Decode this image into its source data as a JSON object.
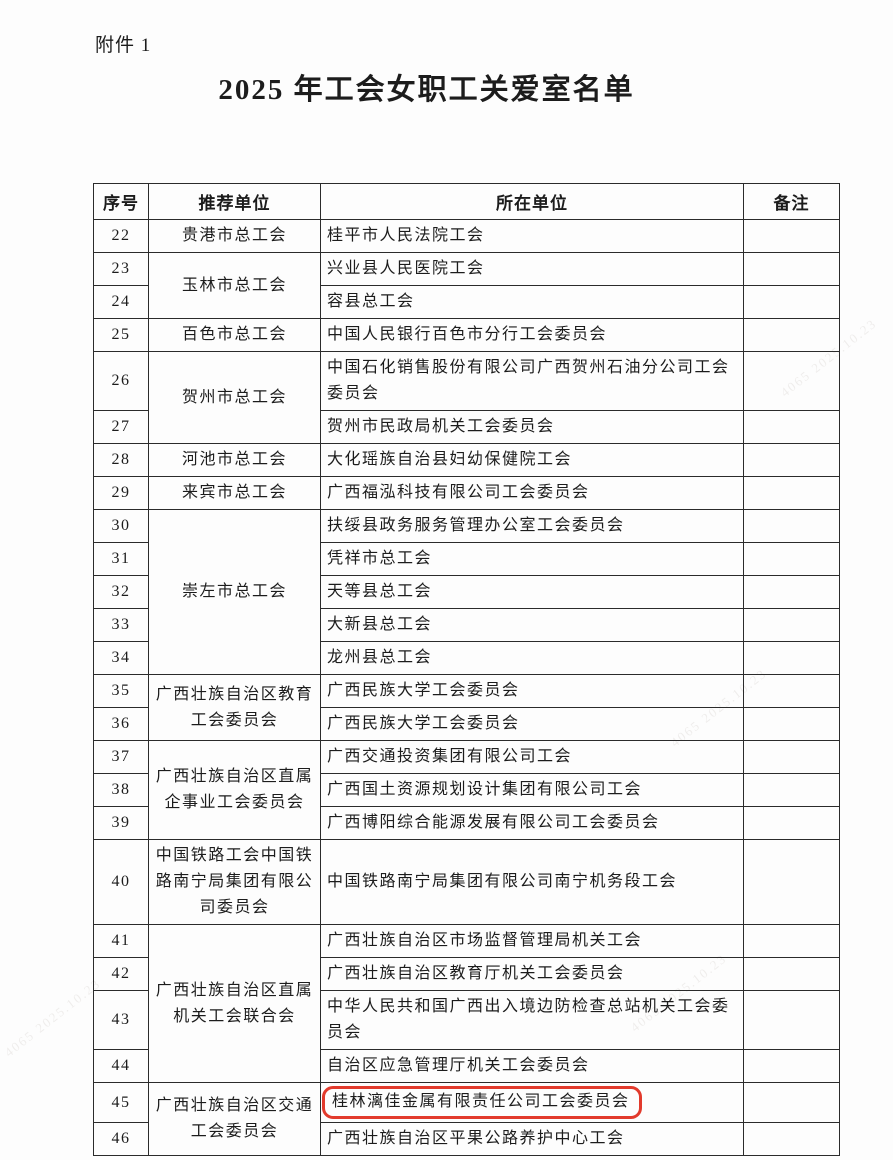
{
  "page": {
    "attachment_label": "附件 1",
    "title": "2025 年工会女职工关爱室名单"
  },
  "table": {
    "headers": [
      "序号",
      "推荐单位",
      "所在单位",
      "备注"
    ],
    "groups": [
      {
        "recommender": "贵港市总工会",
        "rows": [
          {
            "no": "22",
            "unit": "桂平市人民法院工会",
            "remark": ""
          }
        ]
      },
      {
        "recommender": "玉林市总工会",
        "rows": [
          {
            "no": "23",
            "unit": "兴业县人民医院工会",
            "remark": ""
          },
          {
            "no": "24",
            "unit": "容县总工会",
            "remark": ""
          }
        ]
      },
      {
        "recommender": "百色市总工会",
        "rows": [
          {
            "no": "25",
            "unit": "中国人民银行百色市分行工会委员会",
            "remark": ""
          }
        ]
      },
      {
        "recommender": "贺州市总工会",
        "rows": [
          {
            "no": "26",
            "unit": "中国石化销售股份有限公司广西贺州石油分公司工会委员会",
            "remark": ""
          },
          {
            "no": "27",
            "unit": "贺州市民政局机关工会委员会",
            "remark": ""
          }
        ]
      },
      {
        "recommender": "河池市总工会",
        "rows": [
          {
            "no": "28",
            "unit": "大化瑶族自治县妇幼保健院工会",
            "remark": ""
          }
        ]
      },
      {
        "recommender": "来宾市总工会",
        "rows": [
          {
            "no": "29",
            "unit": "广西福泓科技有限公司工会委员会",
            "remark": ""
          }
        ]
      },
      {
        "recommender": "崇左市总工会",
        "rows": [
          {
            "no": "30",
            "unit": "扶绥县政务服务管理办公室工会委员会",
            "remark": ""
          },
          {
            "no": "31",
            "unit": "凭祥市总工会",
            "remark": ""
          },
          {
            "no": "32",
            "unit": "天等县总工会",
            "remark": ""
          },
          {
            "no": "33",
            "unit": "大新县总工会",
            "remark": ""
          },
          {
            "no": "34",
            "unit": "龙州县总工会",
            "remark": ""
          }
        ]
      },
      {
        "recommender": "广西壮族自治区教育工会委员会",
        "rows": [
          {
            "no": "35",
            "unit": "广西民族大学工会委员会",
            "remark": ""
          },
          {
            "no": "36",
            "unit": "广西民族大学工会委员会",
            "remark": ""
          }
        ]
      },
      {
        "recommender": "广西壮族自治区直属企事业工会委员会",
        "rows": [
          {
            "no": "37",
            "unit": "广西交通投资集团有限公司工会",
            "remark": ""
          },
          {
            "no": "38",
            "unit": "广西国土资源规划设计集团有限公司工会",
            "remark": ""
          },
          {
            "no": "39",
            "unit": "广西博阳综合能源发展有限公司工会委员会",
            "remark": ""
          }
        ]
      },
      {
        "recommender": "中国铁路工会中国铁路南宁局集团有限公司委员会",
        "rows": [
          {
            "no": "40",
            "unit": "中国铁路南宁局集团有限公司南宁机务段工会",
            "remark": ""
          }
        ]
      },
      {
        "recommender": "广西壮族自治区直属机关工会联合会",
        "rows": [
          {
            "no": "41",
            "unit": "广西壮族自治区市场监督管理局机关工会",
            "remark": ""
          },
          {
            "no": "42",
            "unit": "广西壮族自治区教育厅机关工会委员会",
            "remark": ""
          },
          {
            "no": "43",
            "unit": "中华人民共和国广西出入境边防检查总站机关工会委员会",
            "remark": ""
          },
          {
            "no": "44",
            "unit": "自治区应急管理厅机关工会委员会",
            "remark": ""
          }
        ]
      },
      {
        "recommender": "广西壮族自治区交通工会委员会",
        "rows": [
          {
            "no": "45",
            "unit": "桂林漓佳金属有限责任公司工会委员会",
            "remark": "",
            "highlighted": true
          },
          {
            "no": "46",
            "unit": "广西壮族自治区平果公路养护中心工会",
            "remark": ""
          }
        ]
      }
    ]
  },
  "highlight": {
    "color": "#e23a2c"
  },
  "watermark": {
    "text": "4065 2025.10.23"
  }
}
